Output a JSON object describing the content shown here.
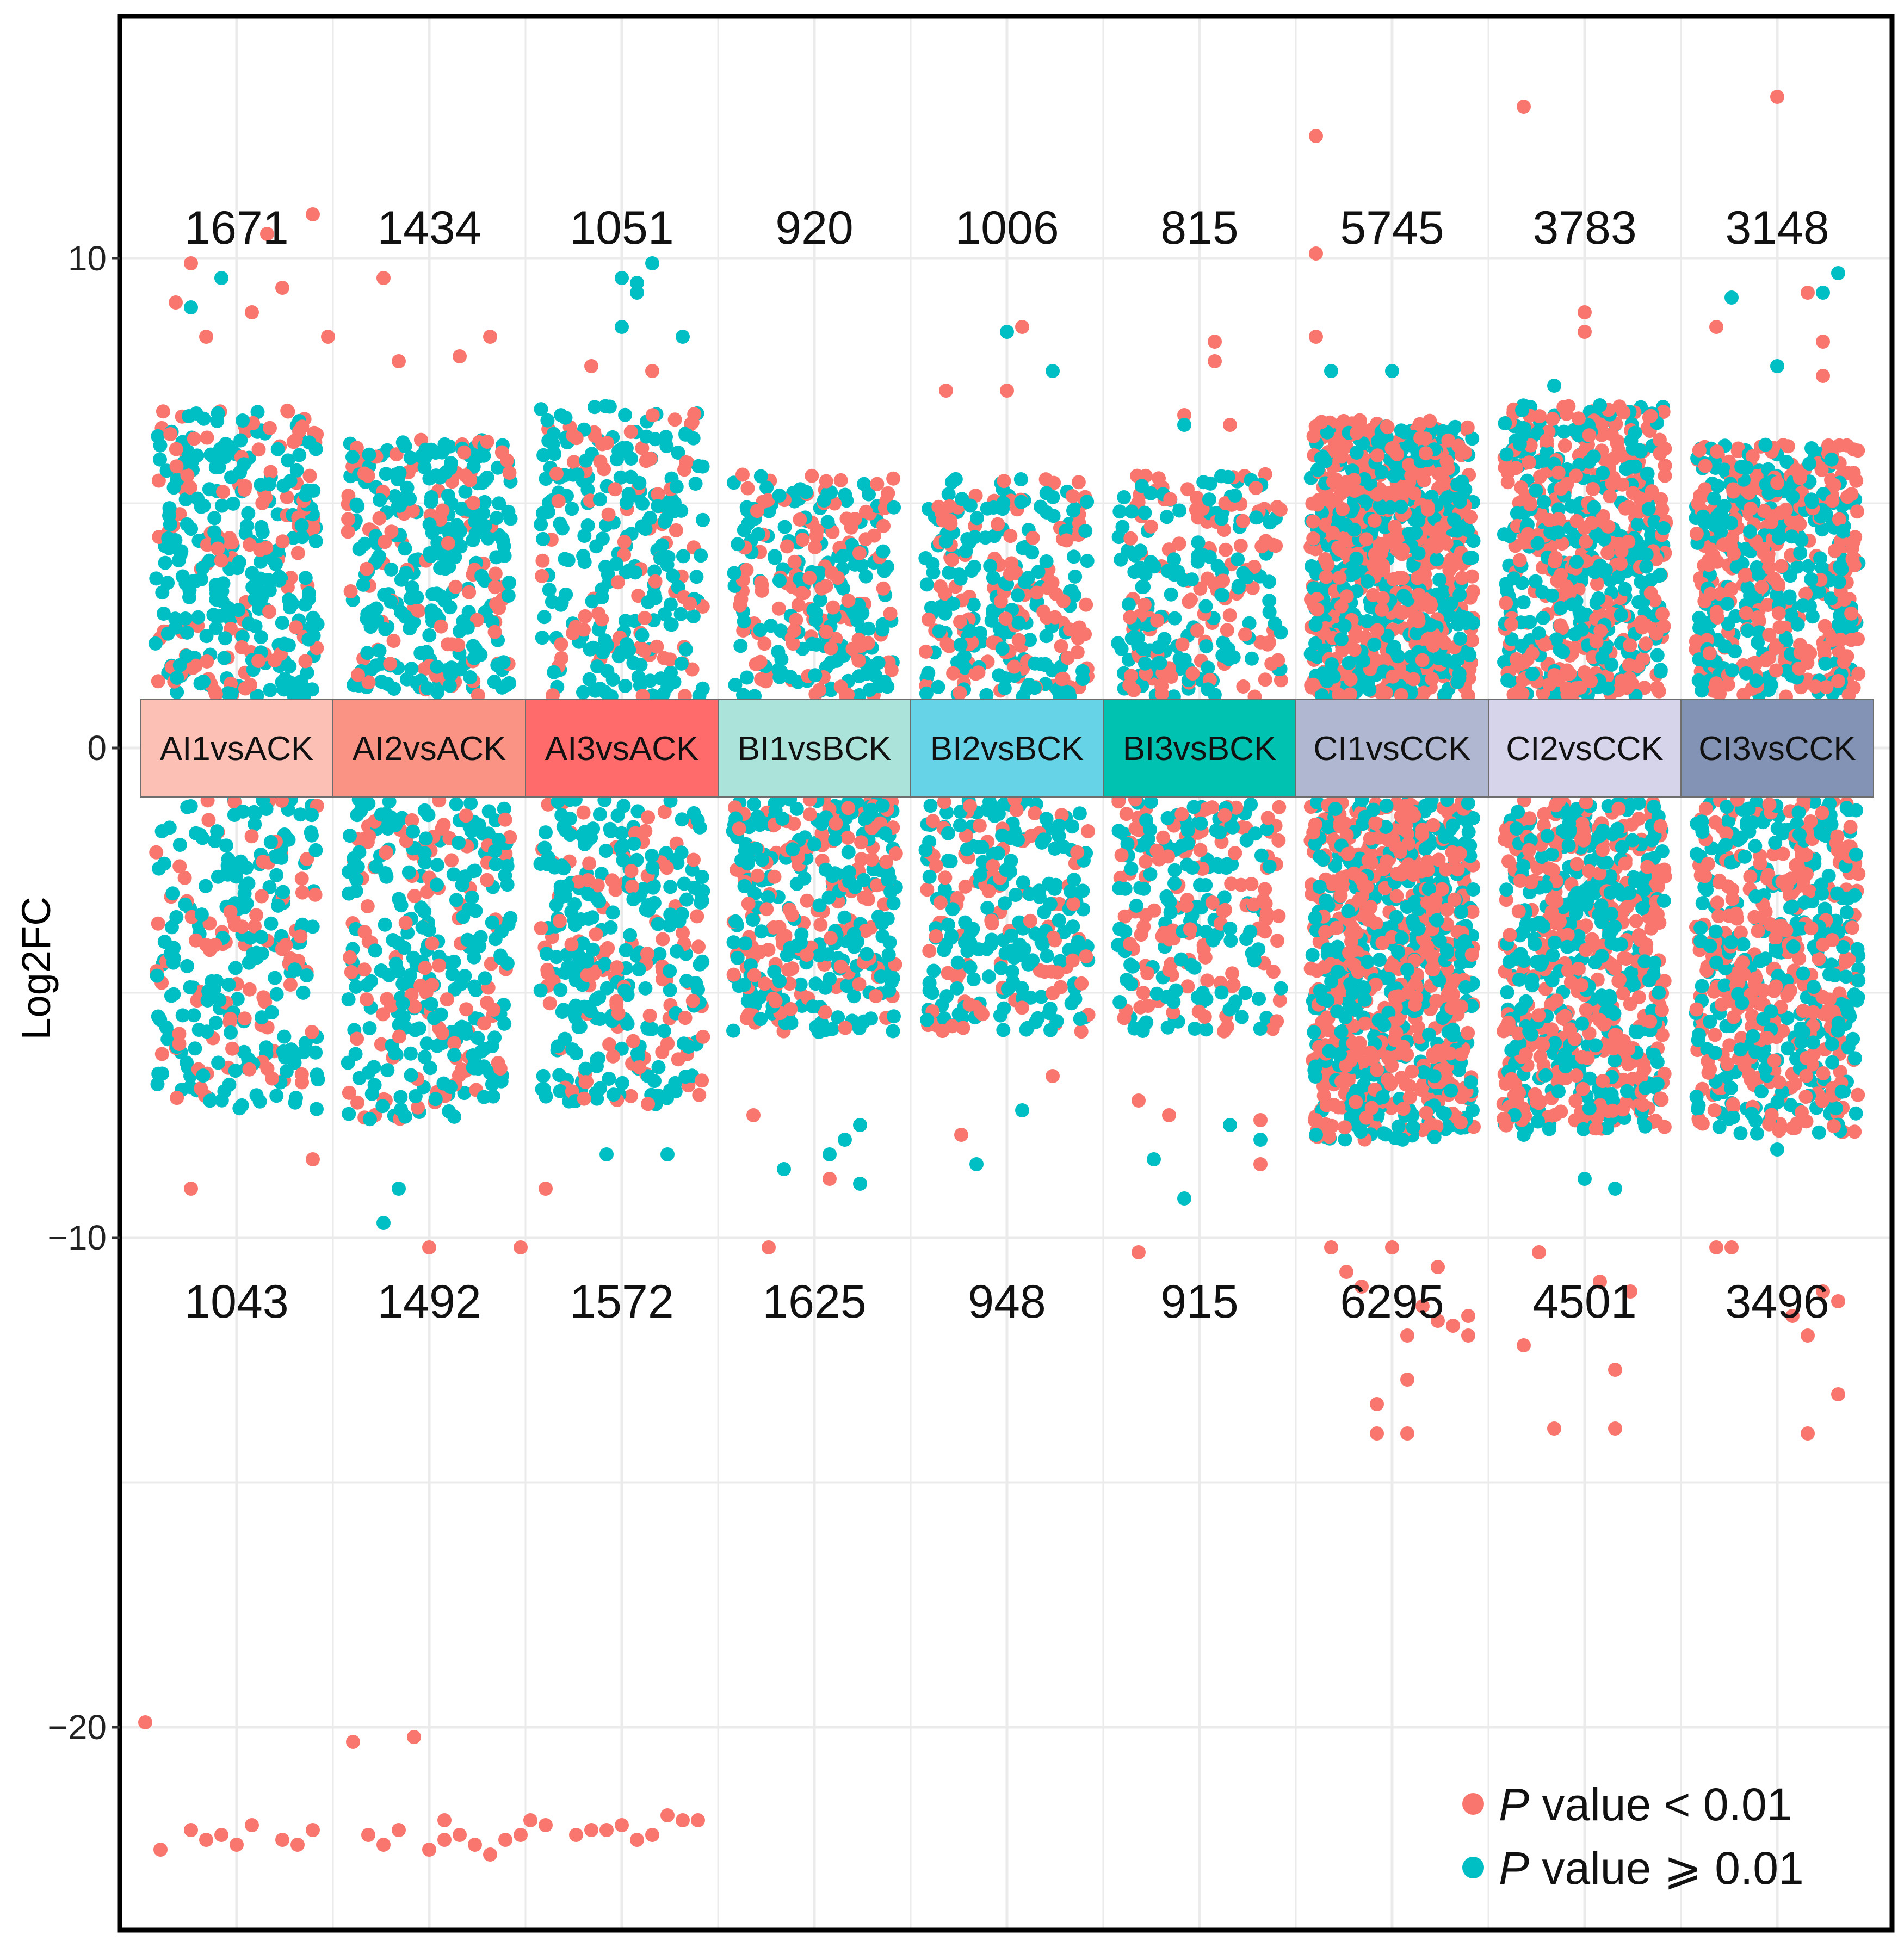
{
  "chart_data": {
    "type": "scatter",
    "ylabel": "Log2FC",
    "xlabel": "",
    "ylim": [
      -24.1,
      15.0
    ],
    "yticks": [
      10,
      0,
      -10,
      -20
    ],
    "ytick_labels": [
      "10",
      "0",
      "−10",
      "−20"
    ],
    "grid": true,
    "legend_position": "bottom-right",
    "colors": {
      "significant": "#F8766D",
      "nonsignificant": "#00BFC4",
      "frame": "#000000",
      "grid": "#EBEBEB"
    },
    "legend": [
      {
        "italic": "P",
        "text": " value  < 0.01",
        "series": "significant"
      },
      {
        "italic": "P",
        "text": " value  ⩾ 0.01",
        "series": "nonsignificant"
      }
    ],
    "categories": [
      "AI1vsACK",
      "AI2vsACK",
      "AI3vsACK",
      "BI1vsBCK",
      "BI2vsBCK",
      "BI3vsBCK",
      "CI1vsCCK",
      "CI2vsCCK",
      "CI3vsCCK"
    ],
    "category_colors": [
      "#FCC0B4",
      "#FA9384",
      "#FF6B6B",
      "#ABE3DA",
      "#66D3E7",
      "#00C2B0",
      "#B0B8D1",
      "#D6D4EB",
      "#8293B6"
    ],
    "up_counts": [
      "1671",
      "1434",
      "1051",
      "920",
      "1006",
      "815",
      "5745",
      "3783",
      "3148"
    ],
    "down_counts": [
      "1043",
      "1492",
      "1572",
      "1625",
      "948",
      "915",
      "6295",
      "4501",
      "3496"
    ],
    "band": {
      "upper": 1.0,
      "lower": -1.0
    },
    "bulk_ranges": [
      {
        "up_max": 6.9,
        "down_min": -7.4,
        "sig_fraction": 0.35
      },
      {
        "up_max": 6.3,
        "down_min": -7.6,
        "sig_fraction": 0.3
      },
      {
        "up_max": 7.0,
        "down_min": -7.3,
        "sig_fraction": 0.3
      },
      {
        "up_max": 5.6,
        "down_min": -5.8,
        "sig_fraction": 0.45
      },
      {
        "up_max": 5.5,
        "down_min": -5.8,
        "sig_fraction": 0.4
      },
      {
        "up_max": 5.6,
        "down_min": -5.8,
        "sig_fraction": 0.4
      },
      {
        "up_max": 6.7,
        "down_min": -8.0,
        "sig_fraction": 0.55
      },
      {
        "up_max": 7.0,
        "down_min": -7.8,
        "sig_fraction": 0.55
      },
      {
        "up_max": 6.2,
        "down_min": -7.9,
        "sig_fraction": 0.5
      }
    ],
    "outliers": [
      {
        "category": "AI1vsACK",
        "significant": [
          [
            -0.3,
            9.9
          ],
          [
            0.5,
            10.9
          ],
          [
            0.2,
            10.5
          ],
          [
            -0.4,
            9.1
          ],
          [
            -0.2,
            8.4
          ],
          [
            0.3,
            9.4
          ],
          [
            0.6,
            8.4
          ],
          [
            0.1,
            8.9
          ],
          [
            -0.3,
            -9.0
          ],
          [
            0.5,
            -8.4
          ],
          [
            -0.6,
            -19.9
          ],
          [
            -0.3,
            -22.1
          ],
          [
            -0.1,
            -22.2
          ],
          [
            0.1,
            -22.0
          ],
          [
            0.3,
            -22.3
          ],
          [
            0.5,
            -22.1
          ],
          [
            0.0,
            -22.4
          ],
          [
            0.4,
            -22.4
          ],
          [
            -0.5,
            -22.5
          ],
          [
            -0.2,
            -22.3
          ]
        ],
        "nonsignificant": [
          [
            -0.1,
            9.6
          ],
          [
            -0.3,
            9.0
          ]
        ]
      },
      {
        "category": "AI2vsACK",
        "significant": [
          [
            -0.3,
            9.6
          ],
          [
            0.4,
            8.4
          ],
          [
            -0.2,
            7.9
          ],
          [
            0.2,
            8.0
          ],
          [
            -0.5,
            -20.3
          ],
          [
            -0.4,
            -22.2
          ],
          [
            -0.3,
            -22.4
          ],
          [
            -0.2,
            -22.1
          ],
          [
            0.0,
            -22.5
          ],
          [
            0.1,
            -22.3
          ],
          [
            0.2,
            -22.2
          ],
          [
            0.3,
            -22.4
          ],
          [
            0.4,
            -22.6
          ],
          [
            0.5,
            -22.3
          ],
          [
            0.6,
            -22.2
          ],
          [
            -0.1,
            -20.2
          ],
          [
            0.1,
            -21.9
          ],
          [
            0.0,
            -10.2
          ],
          [
            0.6,
            -10.2
          ]
        ],
        "nonsignificant": [
          [
            -0.3,
            -9.7
          ],
          [
            -0.2,
            -9.0
          ]
        ]
      },
      {
        "category": "AI3vsACK",
        "significant": [
          [
            -0.2,
            7.8
          ],
          [
            0.2,
            7.7
          ],
          [
            -0.5,
            -9.0
          ],
          [
            -0.6,
            -21.9
          ],
          [
            -0.5,
            -22.0
          ],
          [
            -0.3,
            -22.2
          ],
          [
            -0.2,
            -22.1
          ],
          [
            -0.1,
            -22.1
          ],
          [
            0.1,
            -22.3
          ],
          [
            0.2,
            -22.2
          ],
          [
            0.3,
            -21.8
          ],
          [
            0.4,
            -21.9
          ],
          [
            0.5,
            -21.9
          ],
          [
            0.0,
            -22.0
          ]
        ],
        "nonsignificant": [
          [
            0.0,
            9.6
          ],
          [
            0.1,
            9.5
          ],
          [
            0.2,
            9.9
          ],
          [
            0.1,
            9.3
          ],
          [
            0.0,
            8.6
          ],
          [
            0.4,
            8.4
          ],
          [
            -0.1,
            -8.3
          ],
          [
            0.3,
            -8.3
          ]
        ]
      },
      {
        "category": "BI1vsBCK",
        "significant": [
          [
            -0.3,
            -10.2
          ],
          [
            -0.4,
            -7.5
          ],
          [
            0.1,
            -8.8
          ]
        ],
        "nonsignificant": [
          [
            -0.2,
            -8.6
          ],
          [
            0.1,
            -8.3
          ],
          [
            0.3,
            -7.7
          ],
          [
            0.2,
            -8.0
          ],
          [
            0.3,
            -8.9
          ]
        ]
      },
      {
        "category": "BI2vsBCK",
        "significant": [
          [
            -0.4,
            7.3
          ],
          [
            0.0,
            7.3
          ],
          [
            0.1,
            8.6
          ],
          [
            0.3,
            -6.7
          ],
          [
            -0.3,
            -7.9
          ]
        ],
        "nonsignificant": [
          [
            0.0,
            8.5
          ],
          [
            0.3,
            7.7
          ],
          [
            -0.2,
            -8.5
          ],
          [
            0.1,
            -7.4
          ]
        ]
      },
      {
        "category": "BI3vsBCK",
        "significant": [
          [
            0.1,
            8.3
          ],
          [
            0.1,
            7.9
          ],
          [
            -0.1,
            6.8
          ],
          [
            0.2,
            6.6
          ],
          [
            -0.4,
            -10.3
          ],
          [
            -0.2,
            -7.5
          ],
          [
            0.4,
            -7.6
          ],
          [
            0.4,
            -8.5
          ],
          [
            -0.4,
            -7.2
          ]
        ],
        "nonsignificant": [
          [
            -0.1,
            6.6
          ],
          [
            -0.1,
            -9.2
          ],
          [
            -0.3,
            -8.4
          ],
          [
            0.2,
            -7.7
          ],
          [
            0.4,
            -8.0
          ]
        ]
      },
      {
        "category": "CI1vsCCK",
        "significant": [
          [
            -0.5,
            12.5
          ],
          [
            -0.5,
            10.1
          ],
          [
            -0.5,
            8.4
          ],
          [
            -0.5,
            -7.6
          ],
          [
            -0.4,
            -10.2
          ],
          [
            -0.3,
            -10.7
          ],
          [
            -0.2,
            -11.0
          ],
          [
            0.0,
            -10.2
          ],
          [
            0.1,
            -12.0
          ],
          [
            0.2,
            -11.4
          ],
          [
            0.3,
            -10.6
          ],
          [
            0.4,
            -11.8
          ],
          [
            0.5,
            -12.0
          ],
          [
            -0.1,
            -13.4
          ],
          [
            0.1,
            -12.9
          ],
          [
            0.3,
            -11.7
          ],
          [
            0.5,
            -11.6
          ],
          [
            -0.1,
            -14.0
          ],
          [
            0.1,
            -14.0
          ]
        ],
        "nonsignificant": [
          [
            -0.4,
            7.7
          ],
          [
            0.0,
            7.7
          ],
          [
            -0.5,
            -7.9
          ]
        ]
      },
      {
        "category": "CI2vsCCK",
        "significant": [
          [
            -0.4,
            13.1
          ],
          [
            0.0,
            8.9
          ],
          [
            0.0,
            8.5
          ],
          [
            -0.4,
            -12.2
          ],
          [
            0.2,
            -12.7
          ],
          [
            0.2,
            -13.9
          ],
          [
            -0.2,
            -13.9
          ],
          [
            -0.3,
            -10.3
          ],
          [
            0.1,
            -10.9
          ],
          [
            0.3,
            -11.1
          ]
        ],
        "nonsignificant": [
          [
            -0.2,
            7.4
          ],
          [
            0.1,
            7.0
          ],
          [
            -0.4,
            -7.9
          ],
          [
            0.0,
            -8.8
          ],
          [
            0.2,
            -9.0
          ]
        ]
      },
      {
        "category": "CI3vsCCK",
        "significant": [
          [
            0.0,
            13.3
          ],
          [
            -0.4,
            8.6
          ],
          [
            0.3,
            8.3
          ],
          [
            0.2,
            9.3
          ],
          [
            0.3,
            7.6
          ],
          [
            -0.4,
            -10.2
          ],
          [
            -0.3,
            -10.2
          ],
          [
            0.3,
            -11.1
          ],
          [
            0.2,
            -12.0
          ],
          [
            0.4,
            -13.2
          ],
          [
            0.2,
            -14.0
          ],
          [
            0.1,
            -11.6
          ],
          [
            0.4,
            -11.3
          ]
        ],
        "nonsignificant": [
          [
            -0.3,
            9.2
          ],
          [
            0.0,
            7.8
          ],
          [
            0.3,
            9.3
          ],
          [
            0.4,
            9.7
          ],
          [
            0.0,
            -8.2
          ]
        ]
      }
    ]
  }
}
